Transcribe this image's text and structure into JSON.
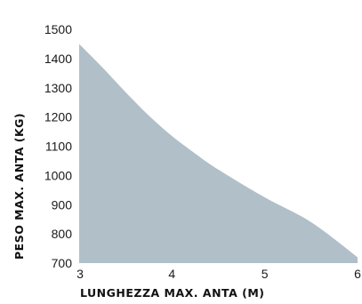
{
  "chart_data": {
    "type": "area",
    "title": "",
    "xlabel": "LUNGHEZZA MAX. ANTA (M)",
    "ylabel": "PESO MAX. ANTA (KG)",
    "xlim": [
      3,
      6
    ],
    "ylim": [
      700,
      1500
    ],
    "x_ticks": [
      "3",
      "4",
      "5",
      "6"
    ],
    "y_ticks": [
      "1500",
      "1400",
      "1300",
      "1200",
      "1100",
      "1000",
      "900",
      "800",
      "700"
    ],
    "x": [
      3,
      3.25,
      3.5,
      3.75,
      4,
      4.25,
      4.5,
      5,
      5.5,
      6
    ],
    "y": [
      1450,
      1370,
      1285,
      1205,
      1135,
      1075,
      1020,
      925,
      840,
      720
    ],
    "grid": false,
    "legend": "none",
    "fill_color": "#b0bfc8"
  }
}
